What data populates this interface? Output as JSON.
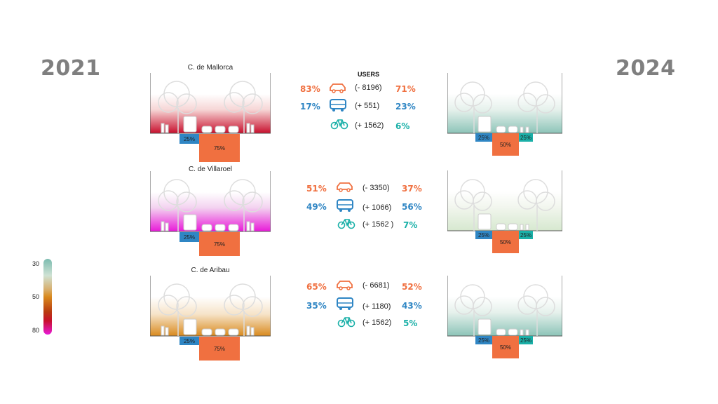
{
  "years": {
    "left": "2021",
    "right": "2024"
  },
  "users_title": "USERS",
  "colors": {
    "car": "#f07040",
    "bus": "#2f86c4",
    "bike": "#1ab0a8",
    "year": "#7f7f7f"
  },
  "icons": {
    "car": "car-icon",
    "bus": "bus-icon",
    "bike": "bicycle-icon"
  },
  "streets": [
    {
      "name": "C. de Mallorca",
      "left_shares": {
        "bus": "25%",
        "car": "75%"
      },
      "right_shares": {
        "bus": "25%",
        "car": "50%",
        "bike": "25%"
      },
      "car": {
        "before": "83%",
        "delta": "(- 8196)",
        "after": "71%"
      },
      "bus": {
        "before": "17%",
        "delta": "(+ 551)",
        "after": "23%"
      },
      "bike": {
        "before": "",
        "delta": "(+ 1562)",
        "after": "6%"
      }
    },
    {
      "name": "C. de Villaroel",
      "left_shares": {
        "bus": "25%",
        "car": "75%"
      },
      "right_shares": {
        "bus": "25%",
        "car": "50%",
        "bike": "25%"
      },
      "car": {
        "before": "51%",
        "delta": "(- 3350)",
        "after": "37%"
      },
      "bus": {
        "before": "49%",
        "delta": "(+ 1066)",
        "after": "56%"
      },
      "bike": {
        "before": "",
        "delta": "(+ 1562 )",
        "after": "7%"
      }
    },
    {
      "name": "C. de Aribau",
      "left_shares": {
        "bus": "25%",
        "car": "75%"
      },
      "right_shares": {
        "bus": "25%",
        "car": "50%",
        "bike": "25%"
      },
      "car": {
        "before": "65%",
        "delta": "(- 6681)",
        "after": "52%"
      },
      "bus": {
        "before": "35%",
        "delta": "(+ 1180)",
        "after": "43%"
      },
      "bike": {
        "before": "",
        "delta": "(+ 1562)",
        "after": "5%"
      }
    }
  ],
  "legend": {
    "top": "30",
    "mid": "50",
    "bottom": "80"
  }
}
